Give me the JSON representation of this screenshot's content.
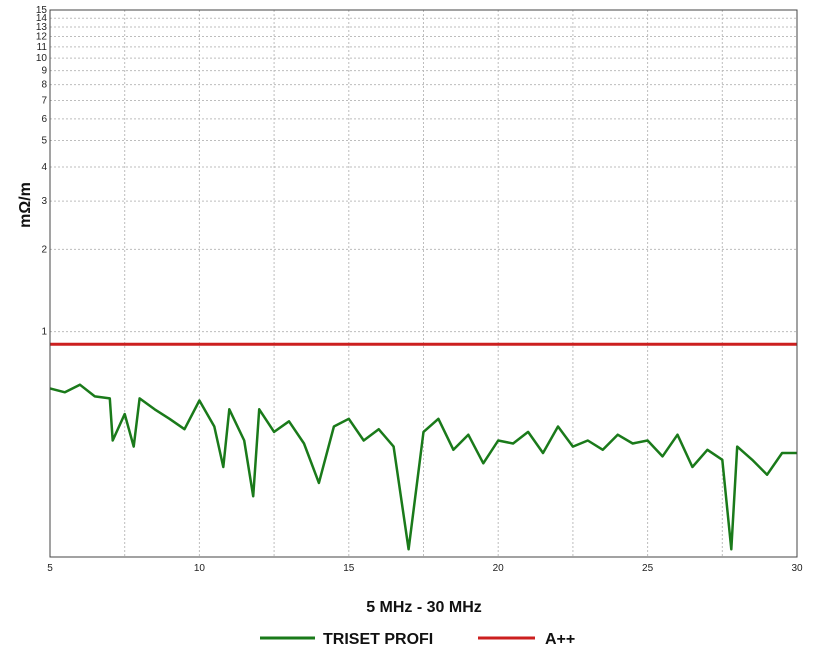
{
  "chart_data": {
    "type": "line",
    "title": "",
    "xlabel": "5 MHz - 30 MHz",
    "ylabel": "mΩ/m",
    "xlim": [
      5,
      30
    ],
    "ylim": [
      0.15,
      15
    ],
    "y_scale": "log",
    "grid": true,
    "x_ticks": [
      "5",
      "10",
      "15",
      "20",
      "25",
      "30"
    ],
    "y_ticks": [
      "1",
      "2",
      "3",
      "4",
      "5",
      "6",
      "7",
      "8",
      "9",
      "10",
      "11",
      "12",
      "13",
      "14",
      "15"
    ],
    "legend_position": "bottom",
    "series": [
      {
        "name": "TRISET PROFI",
        "color": "#1a7a1a",
        "x": [
          5.0,
          5.5,
          6.0,
          6.5,
          7.0,
          7.1,
          7.5,
          7.8,
          8.0,
          8.5,
          9.0,
          9.5,
          10.0,
          10.5,
          10.8,
          11.0,
          11.5,
          11.8,
          12.0,
          12.5,
          13.0,
          13.5,
          14.0,
          14.5,
          15.0,
          15.5,
          16.0,
          16.5,
          17.0,
          17.5,
          18.0,
          18.5,
          19.0,
          19.5,
          20.0,
          20.5,
          21.0,
          21.5,
          22.0,
          22.5,
          23.0,
          23.5,
          24.0,
          24.5,
          25.0,
          25.5,
          26.0,
          26.5,
          27.0,
          27.5,
          27.8,
          28.0,
          28.5,
          29.0,
          29.5,
          30.0
        ],
        "y": [
          0.62,
          0.6,
          0.64,
          0.58,
          0.57,
          0.4,
          0.5,
          0.38,
          0.57,
          0.52,
          0.48,
          0.44,
          0.56,
          0.45,
          0.32,
          0.52,
          0.4,
          0.25,
          0.52,
          0.43,
          0.47,
          0.39,
          0.28,
          0.45,
          0.48,
          0.4,
          0.44,
          0.38,
          0.16,
          0.43,
          0.48,
          0.37,
          0.42,
          0.33,
          0.4,
          0.39,
          0.43,
          0.36,
          0.45,
          0.38,
          0.4,
          0.37,
          0.42,
          0.39,
          0.4,
          0.35,
          0.42,
          0.32,
          0.37,
          0.34,
          0.16,
          0.38,
          0.34,
          0.3,
          0.36,
          0.36
        ]
      },
      {
        "name": "A++",
        "color": "#cc1f1f",
        "x": [
          5,
          30
        ],
        "y": [
          0.9,
          0.9
        ]
      }
    ]
  }
}
